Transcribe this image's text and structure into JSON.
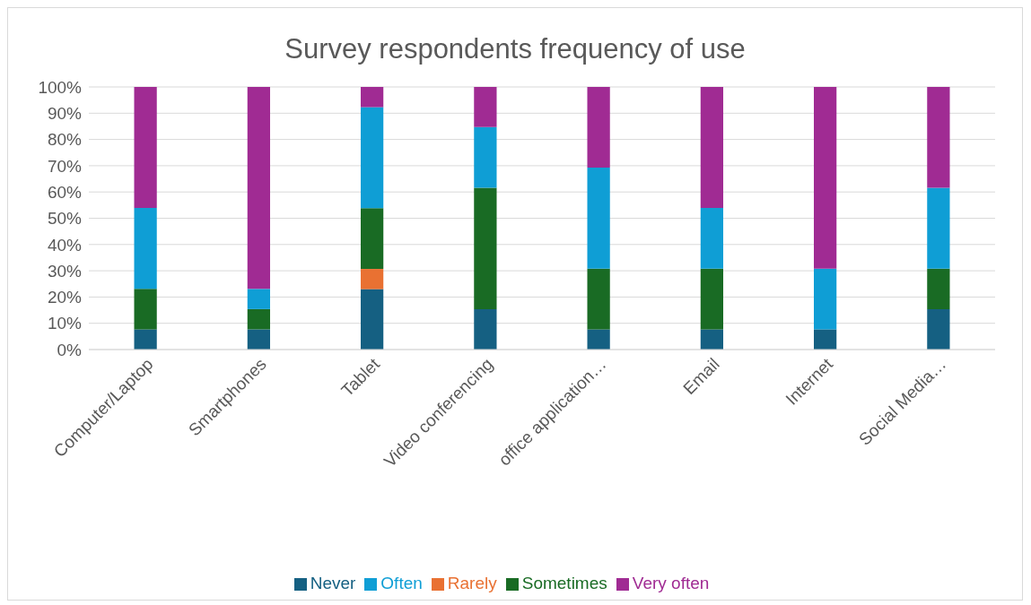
{
  "chart_data": {
    "type": "bar",
    "title": "Survey respondents frequency of use",
    "stacked": true,
    "categories": [
      "Computer/Laptop",
      "Smartphones",
      "Tablet",
      "Video conferencing",
      "office application…",
      "Email",
      "Internet",
      "Social Media…"
    ],
    "series": [
      {
        "name": "Never",
        "color": "#156082",
        "values": [
          7.7,
          7.7,
          23,
          15.4,
          7.7,
          7.7,
          7.7,
          15.4
        ]
      },
      {
        "name": "Rarely",
        "color": "#e97132",
        "values": [
          0,
          0,
          7.7,
          0,
          0,
          0,
          0,
          0
        ]
      },
      {
        "name": "Sometimes",
        "color": "#196b24",
        "values": [
          15.4,
          7.7,
          23.1,
          46.2,
          23.1,
          23.1,
          0,
          15.4
        ]
      },
      {
        "name": "Often",
        "color": "#0f9ed5",
        "values": [
          30.8,
          7.7,
          38.5,
          23.1,
          38.5,
          23.1,
          23.1,
          30.8
        ]
      },
      {
        "name": "Very often",
        "color": "#a02b93",
        "values": [
          46.1,
          76.9,
          7.7,
          15.3,
          30.7,
          46.1,
          69.2,
          38.4
        ]
      }
    ],
    "ylim": [
      0,
      100
    ],
    "yticks": [
      {
        "value": 0,
        "label": "0%"
      },
      {
        "value": 10,
        "label": "10%"
      },
      {
        "value": 20,
        "label": "20%"
      },
      {
        "value": 30,
        "label": "30%"
      },
      {
        "value": 40,
        "label": "40%"
      },
      {
        "value": 50,
        "label": "50%"
      },
      {
        "value": 60,
        "label": "60%"
      },
      {
        "value": 70,
        "label": "70%"
      },
      {
        "value": 80,
        "label": "80%"
      },
      {
        "value": 90,
        "label": "90%"
      },
      {
        "value": 100,
        "label": "100%"
      }
    ],
    "grid": "y",
    "legend": "bottom"
  }
}
